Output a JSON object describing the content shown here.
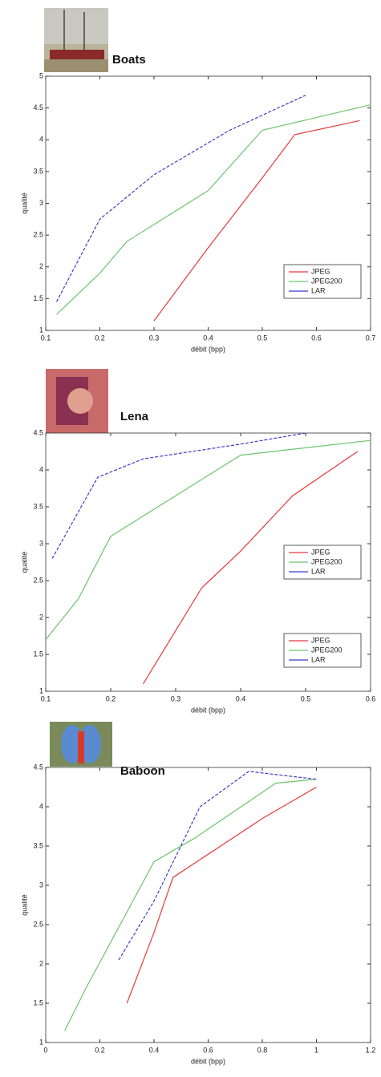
{
  "chart_data": [
    {
      "type": "line",
      "title": "Boats",
      "xlabel": "débit (bpp)",
      "ylabel": "qualité",
      "xlim": [
        0.1,
        0.7
      ],
      "ylim": [
        1,
        5
      ],
      "xticks": [
        0.1,
        0.2,
        0.3,
        0.4,
        0.5,
        0.6,
        0.7
      ],
      "yticks": [
        1,
        1.5,
        2,
        2.5,
        3,
        3.5,
        4,
        4.5,
        5
      ],
      "legend": "right",
      "series": [
        {
          "name": "JPEG",
          "color": "#e8393a",
          "x": [
            0.3,
            0.4,
            0.5,
            0.56,
            0.68
          ],
          "values": [
            1.15,
            2.3,
            3.4,
            4.08,
            4.3
          ]
        },
        {
          "name": "JPEG200",
          "color": "#6cc46c",
          "x": [
            0.12,
            0.2,
            0.25,
            0.4,
            0.5,
            0.7
          ],
          "values": [
            1.25,
            1.9,
            2.4,
            3.2,
            4.15,
            4.55
          ]
        },
        {
          "name": "LAR",
          "color": "#3c3ccc",
          "x": [
            0.12,
            0.2,
            0.3,
            0.44,
            0.58
          ],
          "values": [
            1.45,
            2.75,
            3.45,
            4.15,
            4.7
          ]
        }
      ]
    },
    {
      "type": "line",
      "title": "Lena",
      "xlabel": "débit (bpp)",
      "ylabel": "qualité",
      "xlim": [
        0.1,
        0.6
      ],
      "ylim": [
        1,
        4.5
      ],
      "xticks": [
        0.1,
        0.2,
        0.3,
        0.4,
        0.5,
        0.6
      ],
      "yticks": [
        1,
        1.5,
        2,
        2.5,
        3,
        3.5,
        4,
        4.5
      ],
      "legend": "right",
      "series": [
        {
          "name": "JPEG",
          "color": "#e8393a",
          "x": [
            0.25,
            0.34,
            0.4,
            0.48,
            0.58
          ],
          "values": [
            1.1,
            2.4,
            2.9,
            3.65,
            4.25
          ]
        },
        {
          "name": "JPEG200",
          "color": "#6cc46c",
          "x": [
            0.1,
            0.15,
            0.2,
            0.3,
            0.4,
            0.5,
            0.6
          ],
          "values": [
            1.7,
            2.25,
            3.1,
            3.65,
            4.2,
            4.3,
            4.4
          ]
        },
        {
          "name": "LAR",
          "color": "#3c3ccc",
          "x": [
            0.11,
            0.18,
            0.25,
            0.4,
            0.5
          ],
          "values": [
            2.8,
            3.9,
            4.15,
            4.35,
            4.5
          ]
        }
      ]
    },
    {
      "type": "line",
      "title": "Baboon",
      "xlabel": "débit (bpp)",
      "ylabel": "qualité",
      "xlim": [
        0,
        1.2
      ],
      "ylim": [
        1,
        4.5
      ],
      "xticks": [
        0,
        0.2,
        0.4,
        0.6,
        0.8,
        1,
        1.2
      ],
      "yticks": [
        1,
        1.5,
        2,
        2.5,
        3,
        3.5,
        4,
        4.5
      ],
      "legend": "right",
      "series": [
        {
          "name": "JPEG",
          "color": "#e8393a",
          "x": [
            0.3,
            0.4,
            0.47,
            0.8,
            1.0
          ],
          "values": [
            1.5,
            2.4,
            3.1,
            3.85,
            4.25
          ]
        },
        {
          "name": "JPEG200",
          "color": "#6cc46c",
          "x": [
            0.07,
            0.15,
            0.4,
            0.55,
            0.85,
            1.0
          ],
          "values": [
            1.15,
            1.7,
            3.3,
            3.6,
            4.3,
            4.35
          ]
        },
        {
          "name": "LAR",
          "color": "#3c3ccc",
          "x": [
            0.27,
            0.4,
            0.57,
            0.75,
            1.0
          ],
          "values": [
            2.05,
            2.8,
            4.0,
            4.45,
            4.35
          ]
        }
      ]
    }
  ]
}
